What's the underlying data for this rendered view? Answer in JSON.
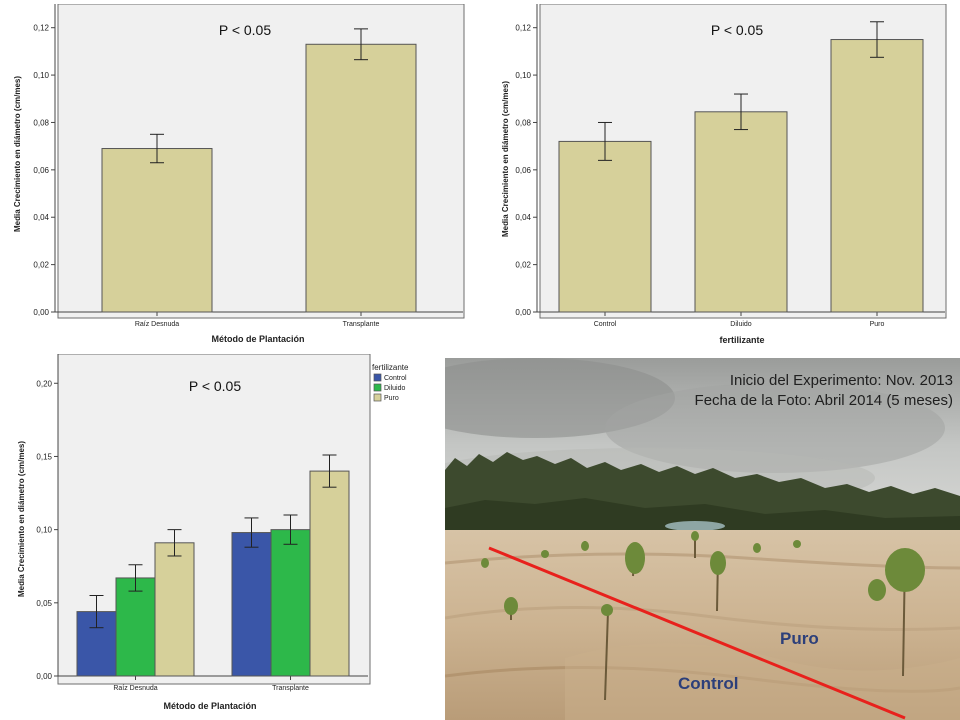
{
  "colors": {
    "plot_bg": "#f0f0f0",
    "bar_fill": "#d6d09a",
    "control": "#3a56a8",
    "diluido": "#2db84a",
    "puro": "#d6d09a",
    "annotation_line": "#e8211c"
  },
  "chart_data": [
    {
      "type": "bar",
      "annotation": "P < 0.05",
      "categories": [
        "Raíz Desnuda",
        "Transplante"
      ],
      "values": [
        0.069,
        0.113
      ],
      "error_low": [
        0.063,
        0.1065
      ],
      "error_high": [
        0.075,
        0.1195
      ],
      "xlabel": "Método de Plantación",
      "ylabel": "Media Crecimiento en diámetro (cm/mes)",
      "ylim": [
        0,
        0.13
      ],
      "yticks": [
        "0,00",
        "0,02",
        "0,04",
        "0,06",
        "0,08",
        "0,10",
        "0,12"
      ],
      "grid": false
    },
    {
      "type": "bar",
      "annotation": "P < 0.05",
      "categories": [
        "Control",
        "Diluido",
        "Puro"
      ],
      "values": [
        0.072,
        0.0845,
        0.115
      ],
      "error_low": [
        0.064,
        0.077,
        0.1075
      ],
      "error_high": [
        0.08,
        0.092,
        0.1225
      ],
      "xlabel": "fertilizante",
      "ylabel": "Media Crecimiento en diámetro (cm/mes)",
      "ylim": [
        0,
        0.13
      ],
      "yticks": [
        "0,00",
        "0,02",
        "0,04",
        "0,06",
        "0,08",
        "0,10",
        "0,12"
      ],
      "grid": false
    },
    {
      "type": "bar",
      "annotation": "P < 0.05",
      "categories": [
        "Raíz Desnuda",
        "Transplante"
      ],
      "series": [
        {
          "name": "Control",
          "values": [
            0.044,
            0.098
          ],
          "error_low": [
            0.033,
            0.088
          ],
          "error_high": [
            0.055,
            0.108
          ]
        },
        {
          "name": "Diluido",
          "values": [
            0.067,
            0.1
          ],
          "error_low": [
            0.058,
            0.09
          ],
          "error_high": [
            0.076,
            0.11
          ]
        },
        {
          "name": "Puro",
          "values": [
            0.091,
            0.14
          ],
          "error_low": [
            0.082,
            0.129
          ],
          "error_high": [
            0.1,
            0.151
          ]
        }
      ],
      "legend_title": "fertilizante",
      "legend_position": "right",
      "xlabel": "Método de Plantación",
      "ylabel": "Media Crecimiento en diámetro (cm/mes)",
      "ylim": [
        0,
        0.22
      ],
      "yticks": [
        "0,00",
        "0,05",
        "0,10",
        "0,15",
        "0,20"
      ],
      "grid": false
    }
  ],
  "photo": {
    "caption_line1": "Inicio del Experimento: Nov. 2013",
    "caption_line2": "Fecha de la Foto: Abril 2014 (5 meses)",
    "label_puro": "Puro",
    "label_control": "Control"
  }
}
